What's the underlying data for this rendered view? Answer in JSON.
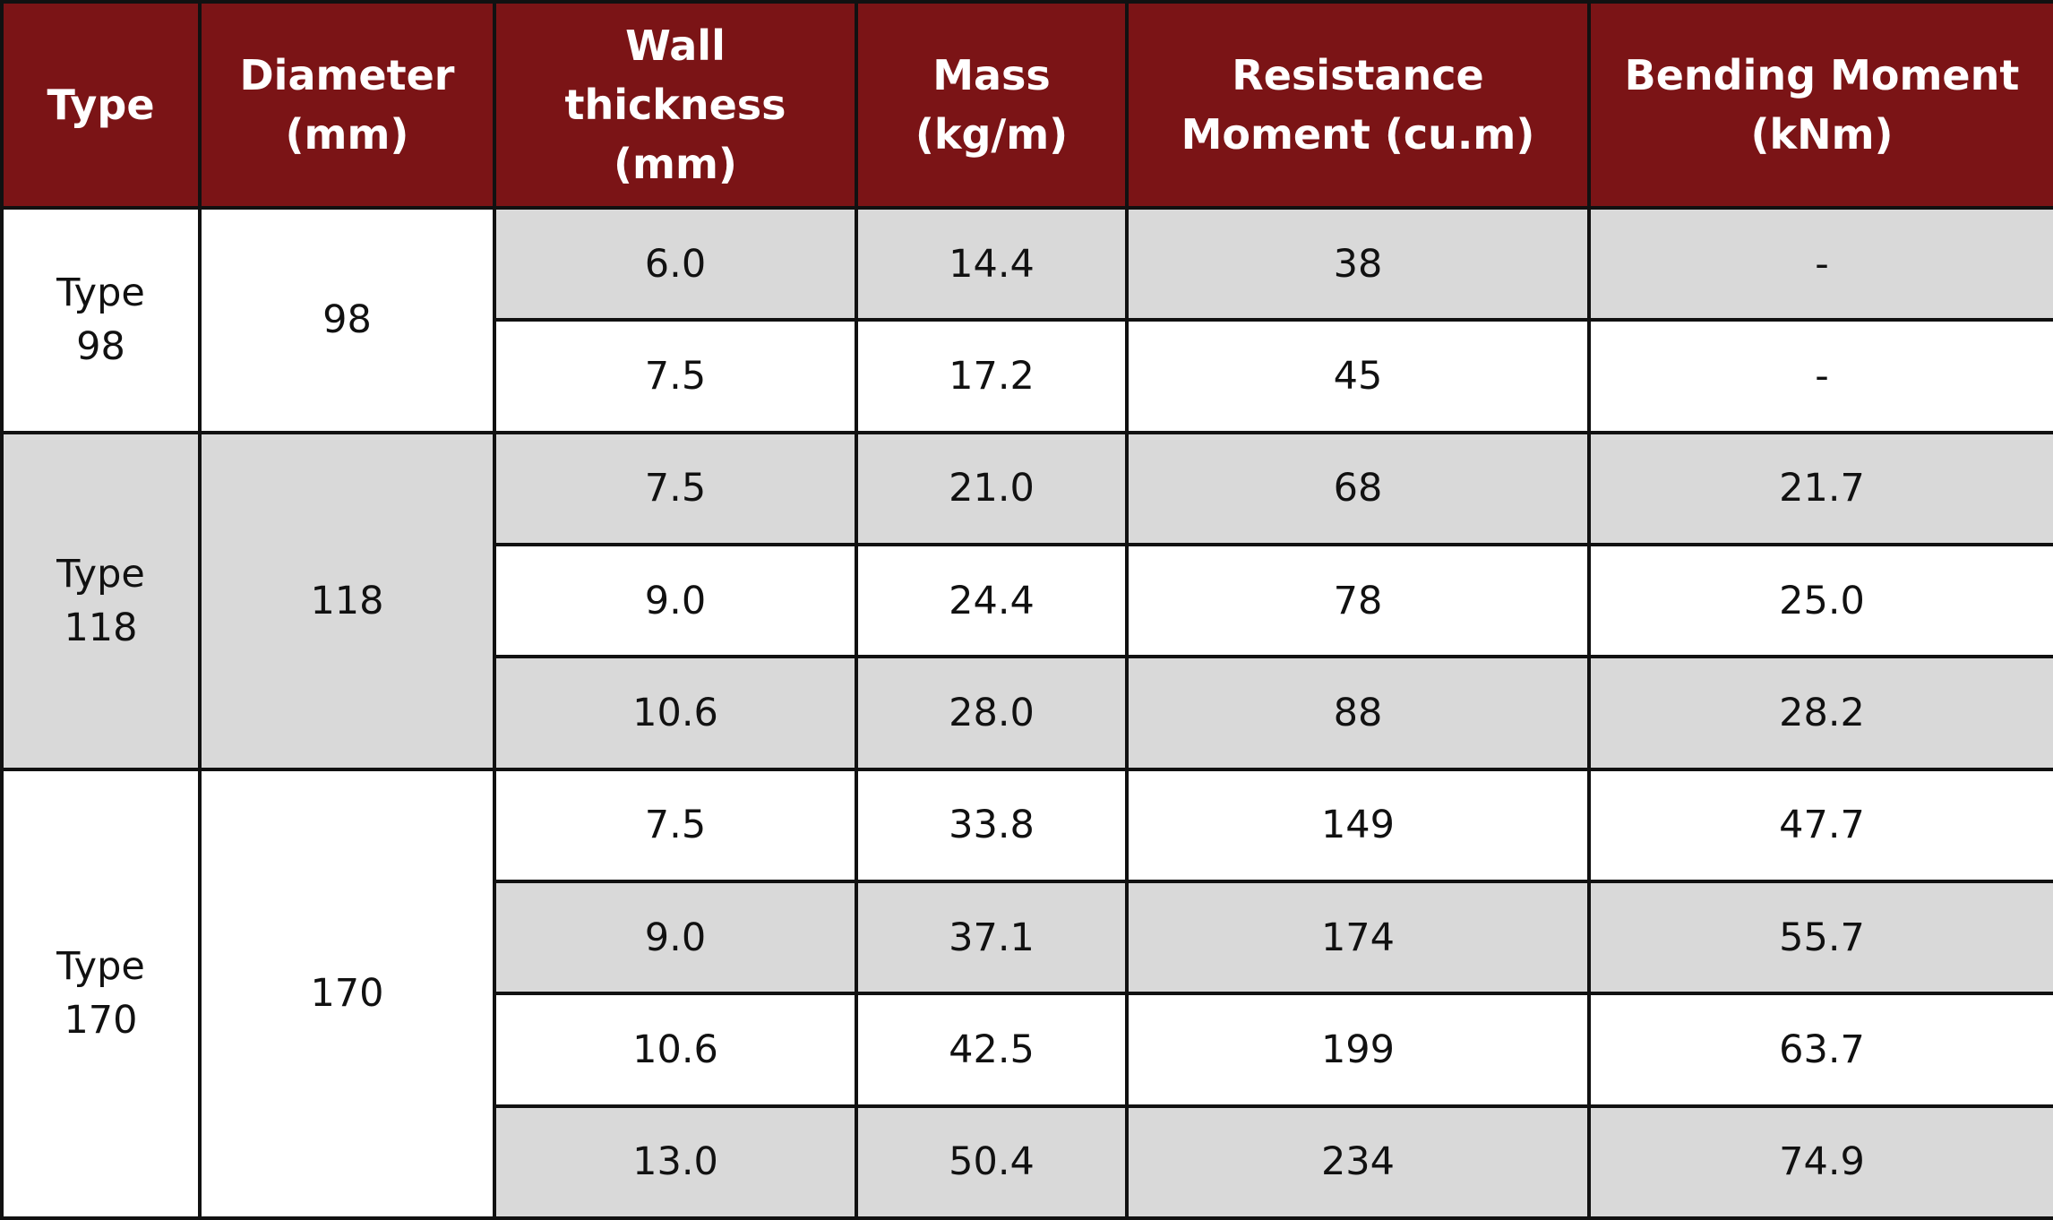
{
  "table": {
    "header": [
      "Type",
      "Diameter (mm)",
      "Wall thickness (mm)",
      "Mass (kg/m)",
      "Resistance Moment (cu.m)",
      "Bending Moment (kNm)"
    ],
    "groups": [
      {
        "type": "Type 98",
        "diameter": "98",
        "rows": [
          [
            "6.0",
            "14.4",
            "38",
            "-"
          ],
          [
            "7.5",
            "17.2",
            "45",
            "-"
          ]
        ]
      },
      {
        "type": "Type 118",
        "diameter": "118",
        "rows": [
          [
            "7.5",
            "21.0",
            "68",
            "21.7"
          ],
          [
            "9.0",
            "24.4",
            "78",
            "25.0"
          ],
          [
            "10.6",
            "28.0",
            "88",
            "28.2"
          ]
        ]
      },
      {
        "type": "Type 170",
        "diameter": "170",
        "rows": [
          [
            "7.5",
            "33.8",
            "149",
            "47.7"
          ],
          [
            "9.0",
            "37.1",
            "174",
            "55.7"
          ],
          [
            "10.6",
            "42.5",
            "199",
            "63.7"
          ],
          [
            "13.0",
            "50.4",
            "234",
            "74.9"
          ]
        ]
      }
    ]
  }
}
